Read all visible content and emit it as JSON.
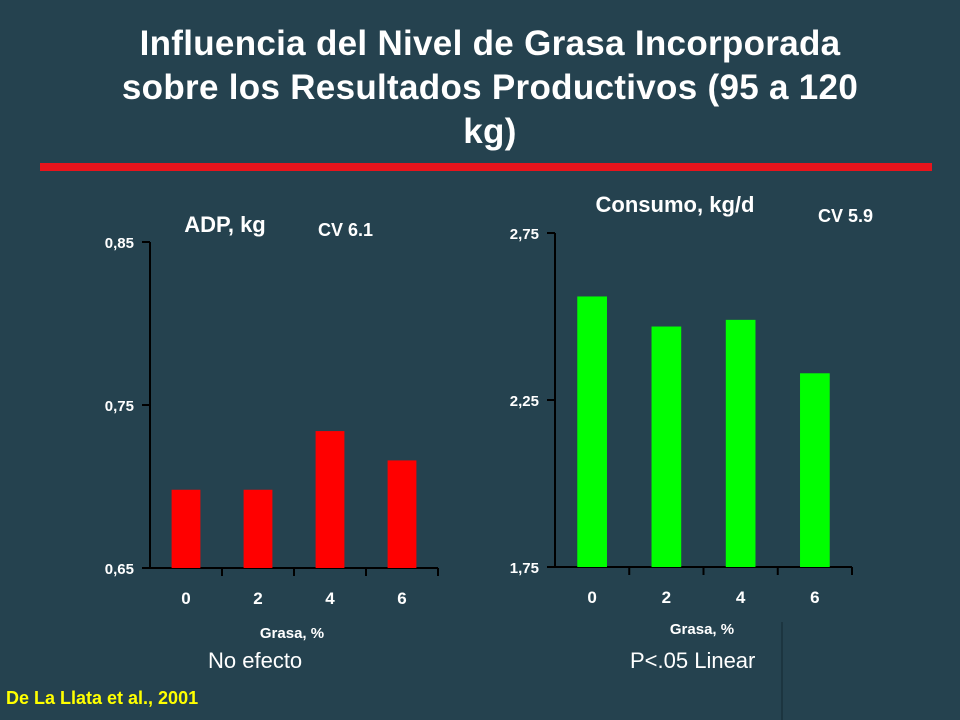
{
  "slide": {
    "title_line1": "Influencia del Nivel de Grasa Incorporada",
    "title_line2": "sobre los Resultados Productivos (95 a 120",
    "title_line3": "kg)",
    "citation": "De La Llata et al., 2001",
    "accent_color": "#e8141c",
    "citation_color": "#ffff00",
    "background_color": "#25424f"
  },
  "chart_data": [
    {
      "type": "bar",
      "title": "ADP, kg",
      "cv_label": "CV 6.1",
      "note": "No efecto",
      "xlabel": "Grasa, %",
      "ylabel": "",
      "categories": [
        "0",
        "2",
        "4",
        "6"
      ],
      "values": [
        0.698,
        0.698,
        0.734,
        0.716
      ],
      "ylim": [
        0.65,
        0.85
      ],
      "yticks": [
        0.65,
        0.75,
        0.85
      ],
      "ytick_labels": [
        "0,65",
        "0,75",
        "0,85"
      ],
      "bar_color": "#ff0000",
      "grid": false
    },
    {
      "type": "bar",
      "title": "Consumo, kg/d",
      "cv_label": "CV 5.9",
      "note": "P<.05 Linear",
      "xlabel": "Grasa, %",
      "ylabel": "",
      "categories": [
        "0",
        "2",
        "4",
        "6"
      ],
      "values": [
        2.56,
        2.47,
        2.49,
        2.33
      ],
      "ylim": [
        1.75,
        2.75
      ],
      "yticks": [
        1.75,
        2.25,
        2.75
      ],
      "ytick_labels": [
        "1,75",
        "2,25",
        "2,75"
      ],
      "bar_color": "#00ff00",
      "grid": false
    }
  ]
}
